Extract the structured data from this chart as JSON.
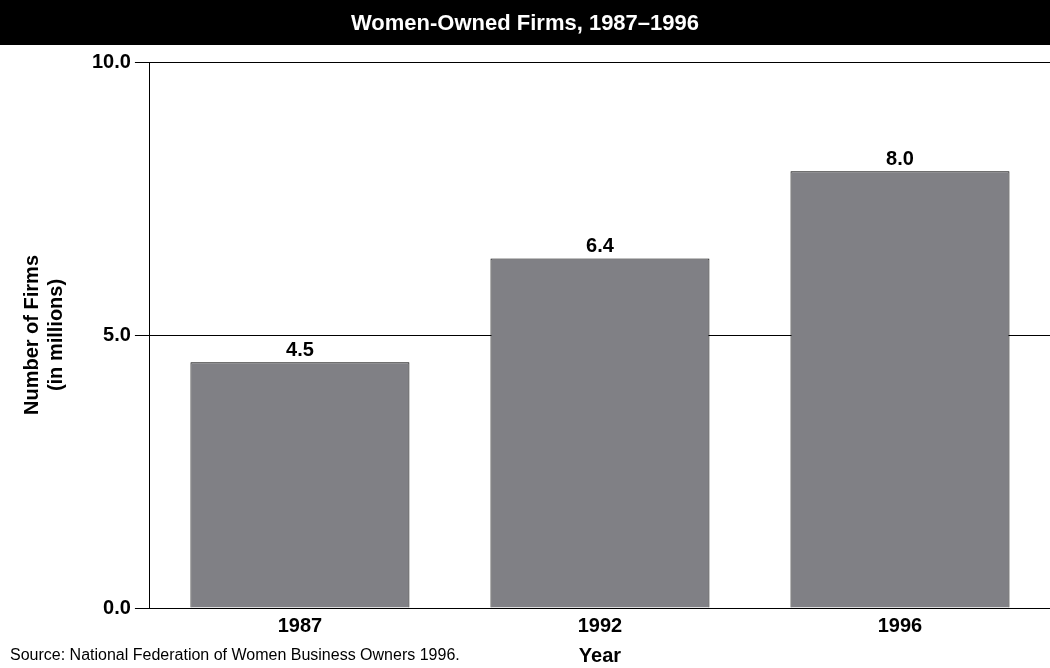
{
  "chart_data": {
    "type": "bar",
    "title": "Women-Owned Firms, 1987–1996",
    "xlabel": "Year",
    "ylabel": "Number of Firms\n(in millions)",
    "categories": [
      "1987",
      "1992",
      "1996"
    ],
    "values": [
      4.5,
      6.4,
      8.0
    ],
    "color": "#808085",
    "value_labels": [
      "4.5",
      "6.4",
      "8.0"
    ],
    "ylim": [
      0,
      10
    ],
    "yticks": [
      {
        "value": 0,
        "label": "0.0"
      },
      {
        "value": 5,
        "label": "5.0"
      },
      {
        "value": 10,
        "label": "10.0"
      }
    ],
    "grid": "y",
    "legend": false,
    "annotations": [
      "Source: National Federation of Women Business Owners 1996."
    ]
  }
}
